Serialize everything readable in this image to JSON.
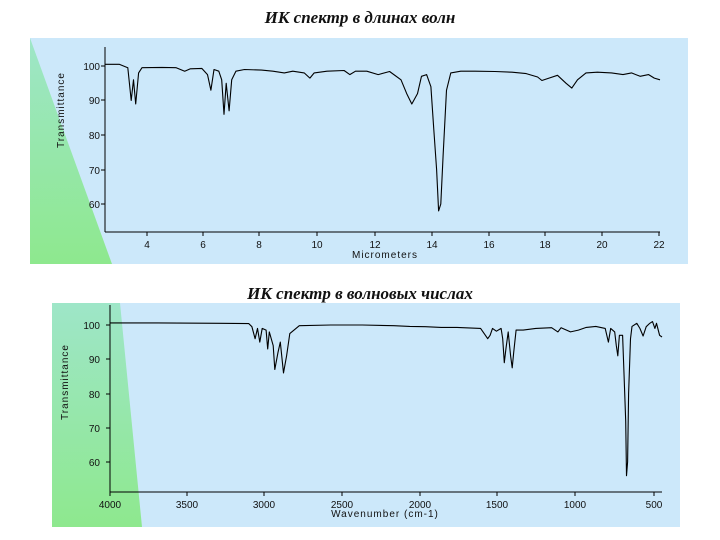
{
  "slide": {
    "title_top": "ИК спектр в длинах волн",
    "title_bottom": "ИК спектр в волновых числах"
  },
  "colors": {
    "panel_bg": "#cce8fa",
    "wedge_top": "#9ee6c8",
    "wedge_bottom": "#8ee88e",
    "spectrum_line": "#000000"
  },
  "chart_data": [
    {
      "type": "line",
      "title": "",
      "xlabel": "Micrometers",
      "ylabel": "Transmittance",
      "xlim": [
        2.5,
        22
      ],
      "ylim": [
        51,
        102
      ],
      "xticks": [
        "4",
        "6",
        "8",
        "10",
        "12",
        "14",
        "16",
        "18",
        "20",
        "22"
      ],
      "yticks": [
        "100",
        "90",
        "80",
        "70",
        "60"
      ],
      "grid": false,
      "series": [
        {
          "values": [
            [
              2.5,
              100.5
            ],
            [
              3.0,
              100.5
            ],
            [
              3.3,
              99.5
            ],
            [
              3.42,
              90
            ],
            [
              3.5,
              96
            ],
            [
              3.58,
              89
            ],
            [
              3.68,
              98
            ],
            [
              3.8,
              99.5
            ],
            [
              4.5,
              99.6
            ],
            [
              5.0,
              99.5
            ],
            [
              5.3,
              98.5
            ],
            [
              5.5,
              99.2
            ],
            [
              5.9,
              99.3
            ],
            [
              6.1,
              97.5
            ],
            [
              6.22,
              93
            ],
            [
              6.33,
              99
            ],
            [
              6.5,
              98.5
            ],
            [
              6.6,
              96
            ],
            [
              6.68,
              86
            ],
            [
              6.76,
              95
            ],
            [
              6.86,
              87
            ],
            [
              6.95,
              96
            ],
            [
              7.1,
              98.5
            ],
            [
              7.4,
              99
            ],
            [
              8.0,
              98.8
            ],
            [
              8.4,
              98.5
            ],
            [
              8.8,
              98
            ],
            [
              9.1,
              98.5
            ],
            [
              9.5,
              98
            ],
            [
              9.7,
              96.5
            ],
            [
              9.85,
              98
            ],
            [
              10.3,
              98.5
            ],
            [
              10.9,
              98.7
            ],
            [
              11.1,
              97.5
            ],
            [
              11.3,
              98.5
            ],
            [
              11.7,
              98.5
            ],
            [
              12.1,
              97.5
            ],
            [
              12.5,
              98.4
            ],
            [
              12.9,
              96
            ],
            [
              13.1,
              92
            ],
            [
              13.28,
              89
            ],
            [
              13.48,
              92
            ],
            [
              13.62,
              97
            ],
            [
              13.8,
              97.5
            ],
            [
              13.95,
              94
            ],
            [
              14.05,
              82
            ],
            [
              14.15,
              70
            ],
            [
              14.22,
              58
            ],
            [
              14.3,
              60
            ],
            [
              14.38,
              74
            ],
            [
              14.5,
              93
            ],
            [
              14.65,
              98
            ],
            [
              15.0,
              98.5
            ],
            [
              15.5,
              98.5
            ],
            [
              16.2,
              98.4
            ],
            [
              16.8,
              98.2
            ],
            [
              17.3,
              97.8
            ],
            [
              17.7,
              96.8
            ],
            [
              17.85,
              95.8
            ],
            [
              18.1,
              96.5
            ],
            [
              18.4,
              97.3
            ],
            [
              18.7,
              95
            ],
            [
              18.9,
              93.6
            ],
            [
              19.1,
              96
            ],
            [
              19.4,
              98
            ],
            [
              19.8,
              98.2
            ],
            [
              20.3,
              98
            ],
            [
              20.7,
              97.5
            ],
            [
              21.0,
              98
            ],
            [
              21.3,
              97
            ],
            [
              21.6,
              97.5
            ],
            [
              21.8,
              96.5
            ],
            [
              22.0,
              96
            ]
          ]
        }
      ]
    },
    {
      "type": "line",
      "title": "",
      "xlabel": "Wavenumber (cm-1)",
      "ylabel": "Transmittance",
      "xlim": [
        4000,
        500
      ],
      "ylim": [
        51,
        102
      ],
      "xticks": [
        "4000",
        "3500",
        "3000",
        "2500",
        "2000",
        "1500",
        "1000",
        "500"
      ],
      "yticks": [
        "100",
        "90",
        "80",
        "70",
        "60"
      ],
      "grid": false,
      "series": [
        {
          "values": [
            [
              4000,
              100.6
            ],
            [
              3700,
              100.6
            ],
            [
              3300,
              100.5
            ],
            [
              3120,
              100.4
            ],
            [
              3100,
              99.5
            ],
            [
              3080,
              96
            ],
            [
              3065,
              99
            ],
            [
              3050,
              95
            ],
            [
              3035,
              99
            ],
            [
              3010,
              98.5
            ],
            [
              3000,
              93
            ],
            [
              2990,
              98
            ],
            [
              2965,
              94
            ],
            [
              2955,
              87
            ],
            [
              2935,
              92
            ],
            [
              2920,
              95
            ],
            [
              2900,
              86
            ],
            [
              2880,
              91
            ],
            [
              2860,
              97.5
            ],
            [
              2800,
              99.8
            ],
            [
              2600,
              100
            ],
            [
              2400,
              100
            ],
            [
              2200,
              99.8
            ],
            [
              2100,
              99.6
            ],
            [
              2000,
              99.5
            ],
            [
              1900,
              99.3
            ],
            [
              1800,
              99.3
            ],
            [
              1650,
              99
            ],
            [
              1620,
              97
            ],
            [
              1605,
              96
            ],
            [
              1590,
              97
            ],
            [
              1575,
              99
            ],
            [
              1550,
              98.2
            ],
            [
              1520,
              99
            ],
            [
              1510,
              96
            ],
            [
              1500,
              89
            ],
            [
              1490,
              93
            ],
            [
              1475,
              98
            ],
            [
              1460,
              91
            ],
            [
              1450,
              87.5
            ],
            [
              1440,
              92
            ],
            [
              1425,
              98.5
            ],
            [
              1380,
              98.5
            ],
            [
              1300,
              99
            ],
            [
              1200,
              99.2
            ],
            [
              1160,
              98
            ],
            [
              1140,
              99.2
            ],
            [
              1080,
              98
            ],
            [
              1030,
              98.5
            ],
            [
              980,
              99.3
            ],
            [
              920,
              99.6
            ],
            [
              860,
              99
            ],
            [
              840,
              95
            ],
            [
              825,
              99
            ],
            [
              800,
              98
            ],
            [
              790,
              94
            ],
            [
              780,
              91
            ],
            [
              770,
              97
            ],
            [
              750,
              97
            ],
            [
              740,
              85
            ],
            [
              730,
              72
            ],
            [
              725,
              56
            ],
            [
              718,
              60
            ],
            [
              712,
              80
            ],
            [
              700,
              96
            ],
            [
              690,
              99.6
            ],
            [
              660,
              100.5
            ],
            [
              640,
              99
            ],
            [
              620,
              96.8
            ],
            [
              600,
              99.5
            ],
            [
              580,
              100.4
            ],
            [
              560,
              101
            ],
            [
              545,
              99
            ],
            [
              535,
              100.5
            ],
            [
              515,
              97
            ],
            [
              500,
              96.5
            ]
          ]
        }
      ]
    }
  ]
}
